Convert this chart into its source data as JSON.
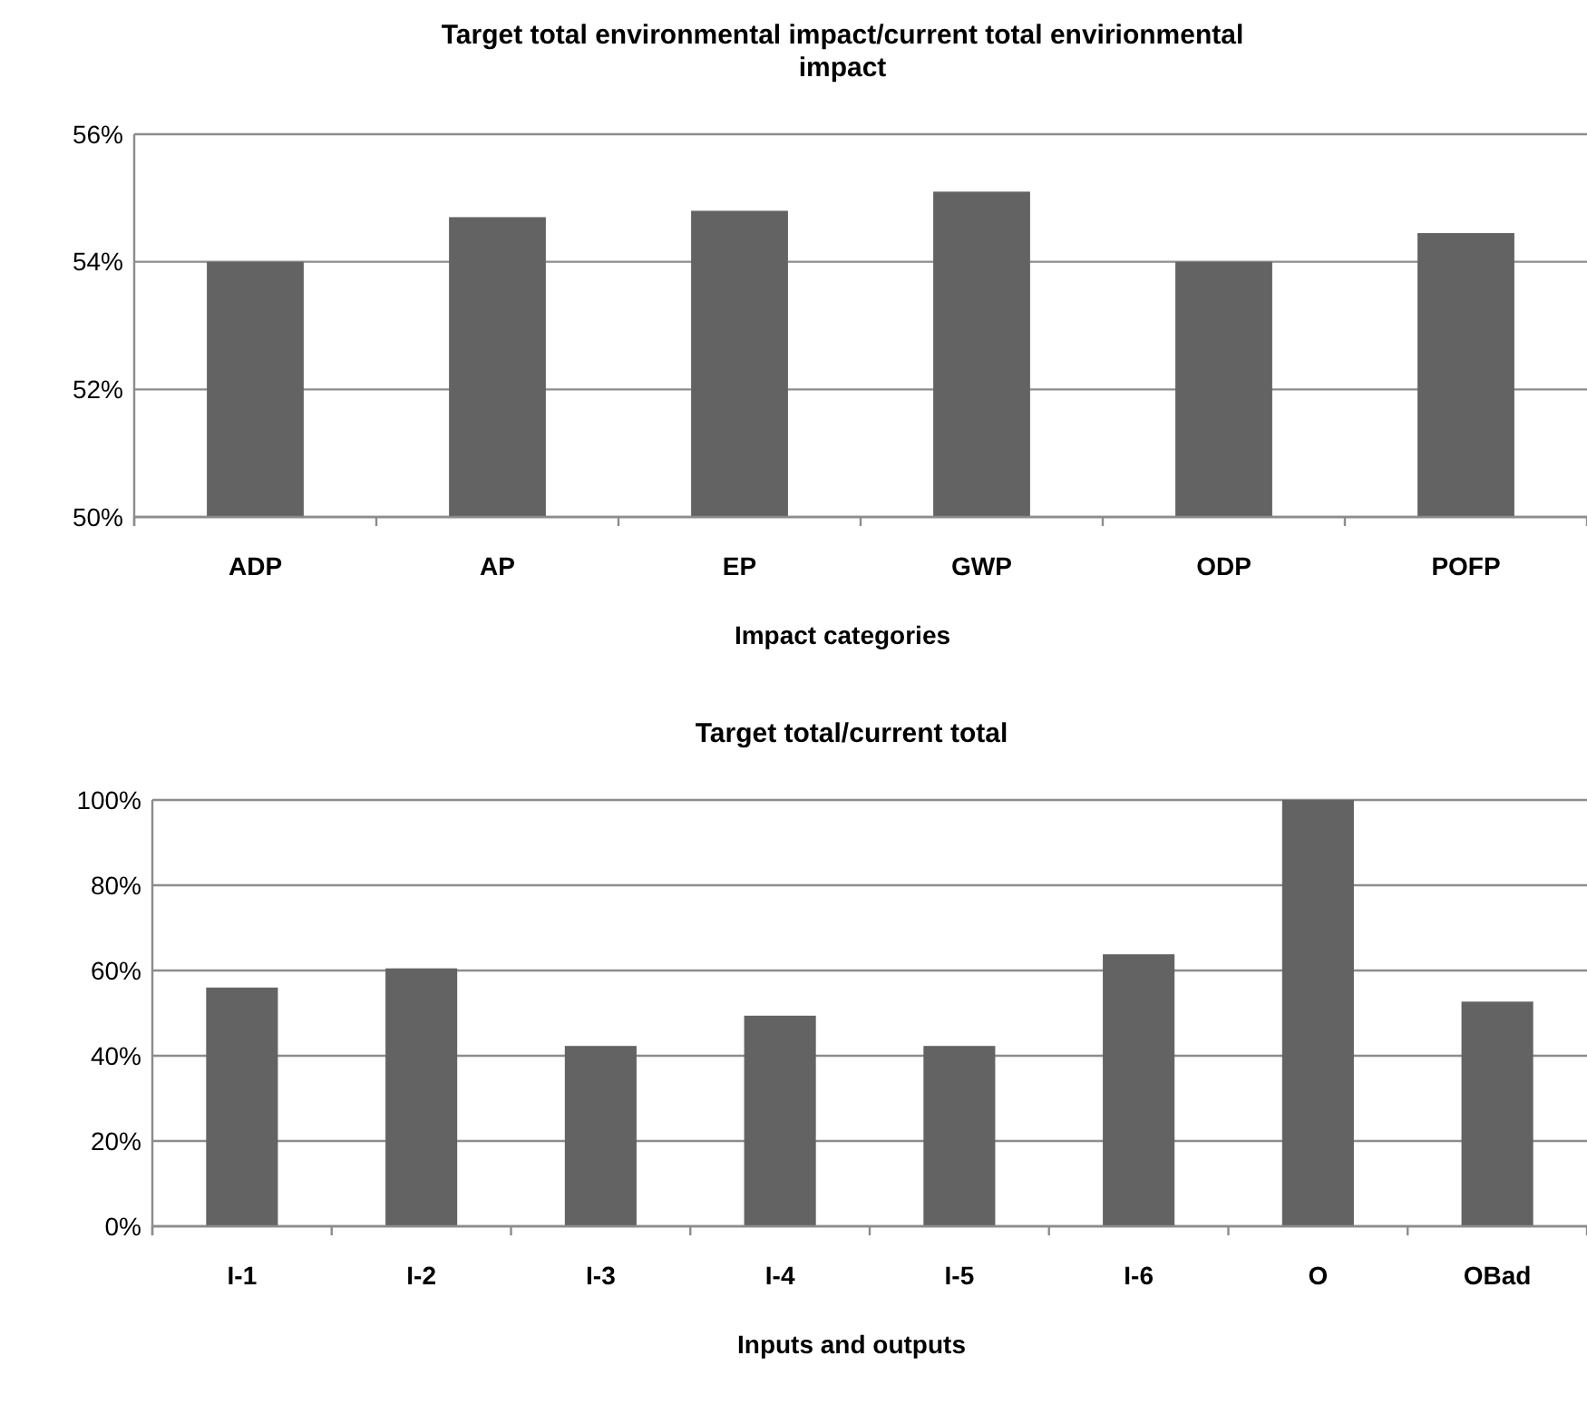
{
  "chart_data": [
    {
      "type": "bar",
      "title": "Target total environmental  impact/current total envirionmental impact",
      "xlabel": "Impact categories",
      "categories": [
        "ADP",
        "AP",
        "EP",
        "GWP",
        "ODP",
        "POFP"
      ],
      "values": [
        54.0,
        54.7,
        54.8,
        55.1,
        54.0,
        54.45
      ],
      "color": "#636363",
      "ylim": [
        50,
        56
      ],
      "yticks": [
        {
          "value": 50,
          "label": "50%"
        },
        {
          "value": 52,
          "label": "52%"
        },
        {
          "value": 54,
          "label": "54%"
        },
        {
          "value": 56,
          "label": "56%"
        }
      ],
      "grid": "y"
    },
    {
      "type": "bar",
      "title": "Target total/current  total",
      "xlabel": "Inputs and outputs",
      "categories": [
        "I-1",
        "I-2",
        "I-3",
        "I-4",
        "I-5",
        "I-6",
        "O",
        "OBad"
      ],
      "values": [
        56,
        60.5,
        42.3,
        49.4,
        42.3,
        63.8,
        100,
        52.7
      ],
      "color": "#636363",
      "ylim": [
        0,
        100
      ],
      "yticks": [
        {
          "value": 0,
          "label": "0%"
        },
        {
          "value": 20,
          "label": "20%"
        },
        {
          "value": 40,
          "label": "40%"
        },
        {
          "value": 60,
          "label": "60%"
        },
        {
          "value": 80,
          "label": "80%"
        },
        {
          "value": 100,
          "label": "100%"
        }
      ],
      "grid": "y"
    }
  ]
}
